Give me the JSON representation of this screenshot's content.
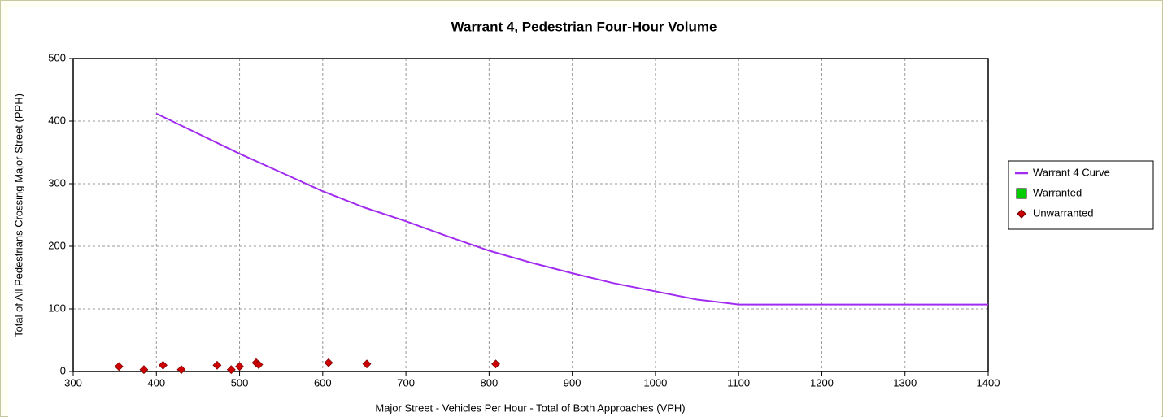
{
  "chart_data": {
    "type": "line",
    "title": "Warrant 4, Pedestrian Four-Hour Volume",
    "x_label": "Major Street - Vehicles Per Hour - Total of Both Approaches (VPH)",
    "y_label": "Total of All Pedestrians Crossing Major Street (PPH)",
    "xlim": [
      300,
      1400
    ],
    "xticks": [
      300,
      400,
      500,
      600,
      700,
      800,
      900,
      1000,
      1100,
      1200,
      1300,
      1400
    ],
    "ylim": [
      0,
      500
    ],
    "yticks": [
      0,
      100,
      200,
      300,
      400,
      500
    ],
    "grid": true,
    "legend": "right",
    "series": [
      {
        "name": "Warrant 4 Curve",
        "color": "#a12cf0",
        "marker": "line",
        "x": [
          400,
          450,
          500,
          550,
          600,
          650,
          700,
          750,
          800,
          850,
          900,
          950,
          1000,
          1050,
          1100,
          1400
        ],
        "values": [
          412,
          380,
          348,
          318,
          288,
          262,
          240,
          216,
          193,
          174,
          157,
          141,
          128,
          115,
          107,
          107
        ]
      },
      {
        "name": "Warranted",
        "color": "#00cc00",
        "marker": "square",
        "x": [],
        "values": []
      },
      {
        "name": "Unwarranted",
        "color": "#cc0000",
        "marker": "diamond",
        "x": [
          355,
          385,
          408,
          430,
          473,
          490,
          500,
          520,
          523,
          607,
          653,
          808
        ],
        "values": [
          8,
          3,
          10,
          3,
          10,
          3,
          8,
          14,
          11,
          14,
          12,
          12
        ]
      }
    ]
  }
}
